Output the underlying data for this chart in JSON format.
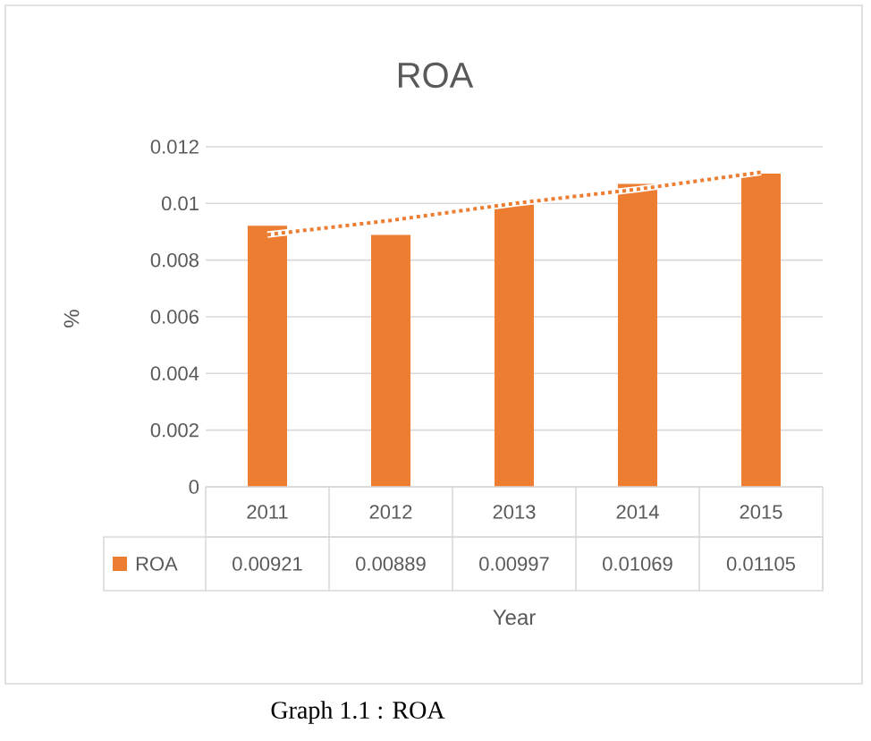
{
  "chart_data": {
    "type": "bar",
    "title": "ROA",
    "xlabel": "Year",
    "ylabel": "%",
    "categories": [
      "2011",
      "2012",
      "2013",
      "2014",
      "2015"
    ],
    "series": [
      {
        "name": "ROA",
        "color": "#ed7d31",
        "values": [
          0.00921,
          0.00889,
          0.00997,
          0.01069,
          0.01105
        ],
        "value_labels": [
          "0.00921",
          "0.00889",
          "0.00997",
          "0.01069",
          "0.01105"
        ]
      },
      {
        "type": "line",
        "color": "#ed7d31",
        "line_style": "dotted",
        "values": [
          0.0089,
          0.0094,
          0.01,
          0.0105,
          0.0111
        ]
      }
    ],
    "ylim": [
      0,
      0.012
    ],
    "yticks": [
      0,
      0.002,
      0.004,
      0.006,
      0.008,
      0.01,
      0.012
    ],
    "grid": "y",
    "legend": "bottom",
    "annotations": [
      "Graph 1.1 : ROA"
    ]
  }
}
